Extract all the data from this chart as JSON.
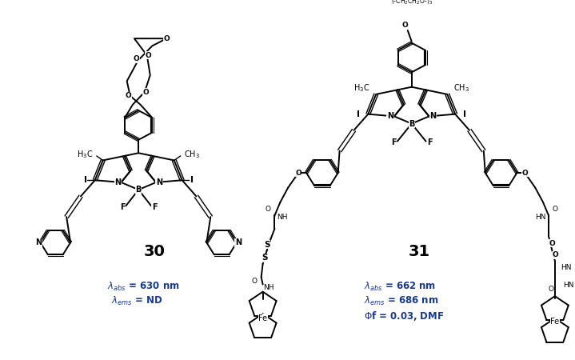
{
  "background_color": "#ffffff",
  "compound_30": {
    "label": "30",
    "label_fontsize": 14,
    "label_fontweight": "bold",
    "label_color": "#000000",
    "text_color": "#1a3a8a",
    "text_fontsize": 8.5,
    "abs_text": "$\\lambda_{abs}$ = 630 nm",
    "ems_text": "$\\lambda_{ems}$ = ND"
  },
  "compound_31": {
    "label": "31",
    "label_fontsize": 14,
    "label_fontweight": "bold",
    "label_color": "#000000",
    "text_color": "#1a3a8a",
    "text_fontsize": 8.5,
    "abs_text": "$\\lambda_{abs}$ = 662 nm",
    "ems_text": "$\\lambda_{ems}$ = 686 nm",
    "phi_text": "$\\Phi$f = 0.03, DMF"
  }
}
